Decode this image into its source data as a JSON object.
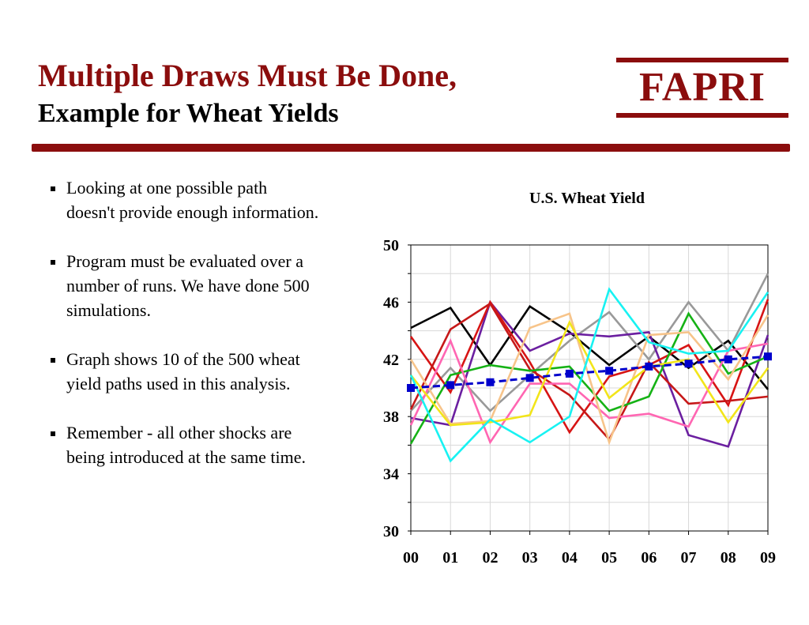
{
  "slide": {
    "title_line1": "Multiple Draws Must Be Done,",
    "title_line2": "Example for Wheat Yields",
    "logo_text": "FAPRI"
  },
  "colors": {
    "accent": "#8B0D0D"
  },
  "bullets": [
    "Looking at one possible path doesn't provide enough information.",
    "Program must be evaluated over a number of runs. We have done 500 simulations.",
    "Graph shows 10 of the 500 wheat yield paths used in this analysis.",
    "Remember - all other shocks are being introduced at the same time."
  ],
  "chart_data": {
    "type": "line",
    "title": "U.S. Wheat Yield",
    "xlabel": "",
    "ylabel": "",
    "categories": [
      "00",
      "01",
      "02",
      "03",
      "04",
      "05",
      "06",
      "07",
      "08",
      "09"
    ],
    "ylim": [
      30,
      50
    ],
    "yticks": [
      30,
      34,
      38,
      42,
      46,
      50
    ],
    "grid": true,
    "legend": "none",
    "series": [
      {
        "color": "#000000",
        "values": [
          44.2,
          45.6,
          41.6,
          45.7,
          43.9,
          41.6,
          43.6,
          41.4,
          43.3,
          39.9
        ]
      },
      {
        "color": "#999999",
        "values": [
          38.4,
          41.4,
          38.4,
          40.9,
          43.3,
          45.3,
          42.0,
          46.0,
          42.6,
          48.0
        ]
      },
      {
        "color": "#6B1FA0",
        "values": [
          37.9,
          37.4,
          46.0,
          42.6,
          43.8,
          43.6,
          43.9,
          36.7,
          35.9,
          43.7
        ]
      },
      {
        "color": "#D71414",
        "values": [
          43.6,
          39.7,
          46.0,
          41.8,
          36.9,
          40.8,
          41.6,
          43.0,
          38.8,
          46.2
        ]
      },
      {
        "color": "#C61818",
        "values": [
          38.5,
          44.1,
          45.9,
          41.3,
          39.5,
          36.4,
          41.8,
          38.9,
          39.1,
          39.4
        ]
      },
      {
        "color": "#15B215",
        "values": [
          36.1,
          40.9,
          41.6,
          41.2,
          41.5,
          38.4,
          39.4,
          45.2,
          41.0,
          42.2
        ]
      },
      {
        "color": "#FF66B2",
        "values": [
          37.4,
          43.3,
          36.2,
          40.3,
          40.3,
          37.9,
          38.2,
          37.3,
          42.6,
          43.1
        ]
      },
      {
        "color": "#F7C48A",
        "values": [
          42.0,
          37.5,
          37.7,
          44.2,
          45.2,
          36.2,
          43.7,
          43.9,
          40.6,
          45.1
        ]
      },
      {
        "color": "#F2E51A",
        "values": [
          40.9,
          37.4,
          37.6,
          38.1,
          44.6,
          39.3,
          41.5,
          42.0,
          37.6,
          41.4
        ]
      },
      {
        "color": "#18F2F2",
        "values": [
          40.9,
          34.9,
          37.8,
          36.2,
          38.0,
          46.9,
          43.2,
          42.4,
          42.6,
          46.7
        ]
      },
      {
        "color": "#0000CC",
        "marker": "square",
        "dashed": true,
        "values": [
          40.0,
          40.2,
          40.4,
          40.7,
          41.0,
          41.2,
          41.5,
          41.7,
          42.0,
          42.2
        ]
      }
    ]
  }
}
